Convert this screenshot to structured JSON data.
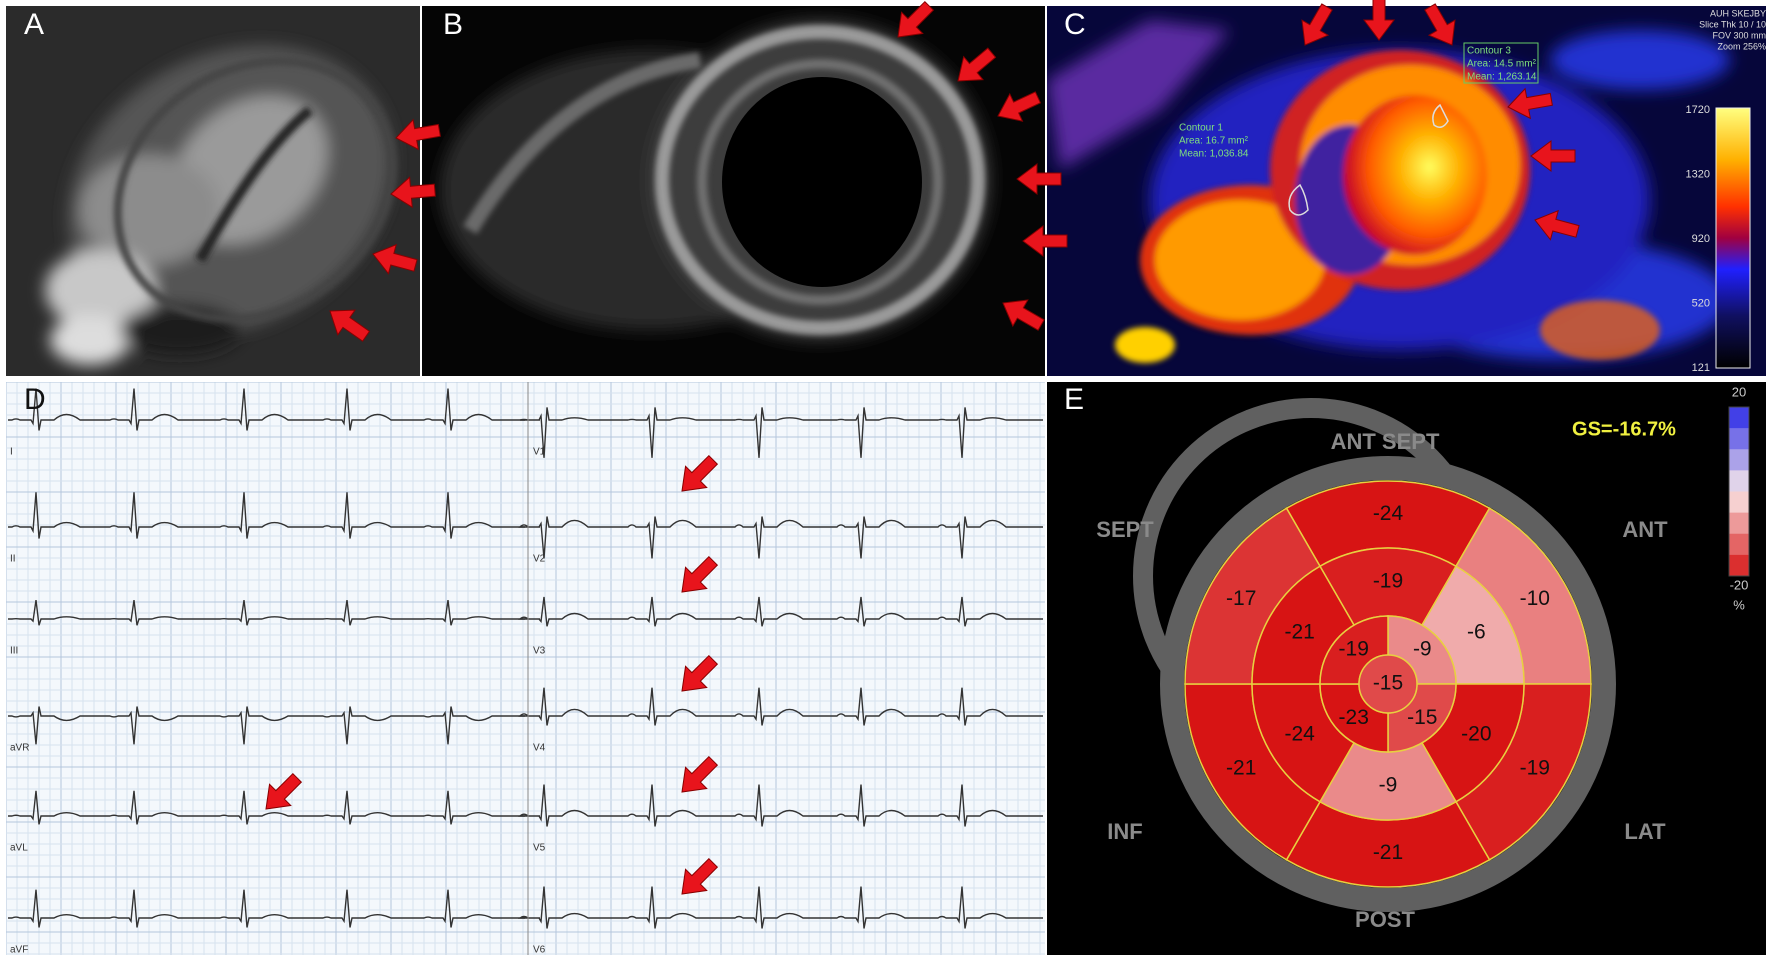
{
  "panel_labels": [
    "A",
    "B",
    "C",
    "D",
    "E"
  ],
  "panel_c": {
    "info": [
      "AUH SKEJBY",
      "Slice Thk 10 / 10",
      "FOV 300 mm",
      "Zoom 256%"
    ],
    "contour_1": [
      "Contour 1",
      "Area: 16.7 mm²",
      "Mean: 1,036.84"
    ],
    "contour_3": [
      "Contour 3",
      "Area: 14.5 mm²",
      "Mean: 1,263.14"
    ],
    "scale_labels": [
      "1720",
      "1320",
      "920",
      "520",
      "121"
    ]
  },
  "panel_d": {
    "leads": [
      "I",
      "II",
      "III",
      "aVR",
      "aVL",
      "aVF",
      "V1",
      "V2",
      "V3",
      "V4",
      "V5",
      "V6"
    ]
  },
  "panel_e": {
    "global_strain": "GS=-16.7%",
    "orientation": {
      "ant_sept": "ANT  SEPT",
      "sept": "SEPT",
      "ant": "ANT",
      "inf": "INF",
      "lat": "LAT",
      "post": "POST"
    },
    "scale": {
      "max": 20,
      "min": -20,
      "unit": "%"
    },
    "basal": [
      -24,
      -10,
      -19,
      -21,
      -21,
      -17
    ],
    "mid": [
      -19,
      -6,
      -20,
      -9,
      -24,
      -21
    ],
    "apical": [
      -9,
      -15,
      -23,
      -19
    ],
    "apex": -15
  }
}
